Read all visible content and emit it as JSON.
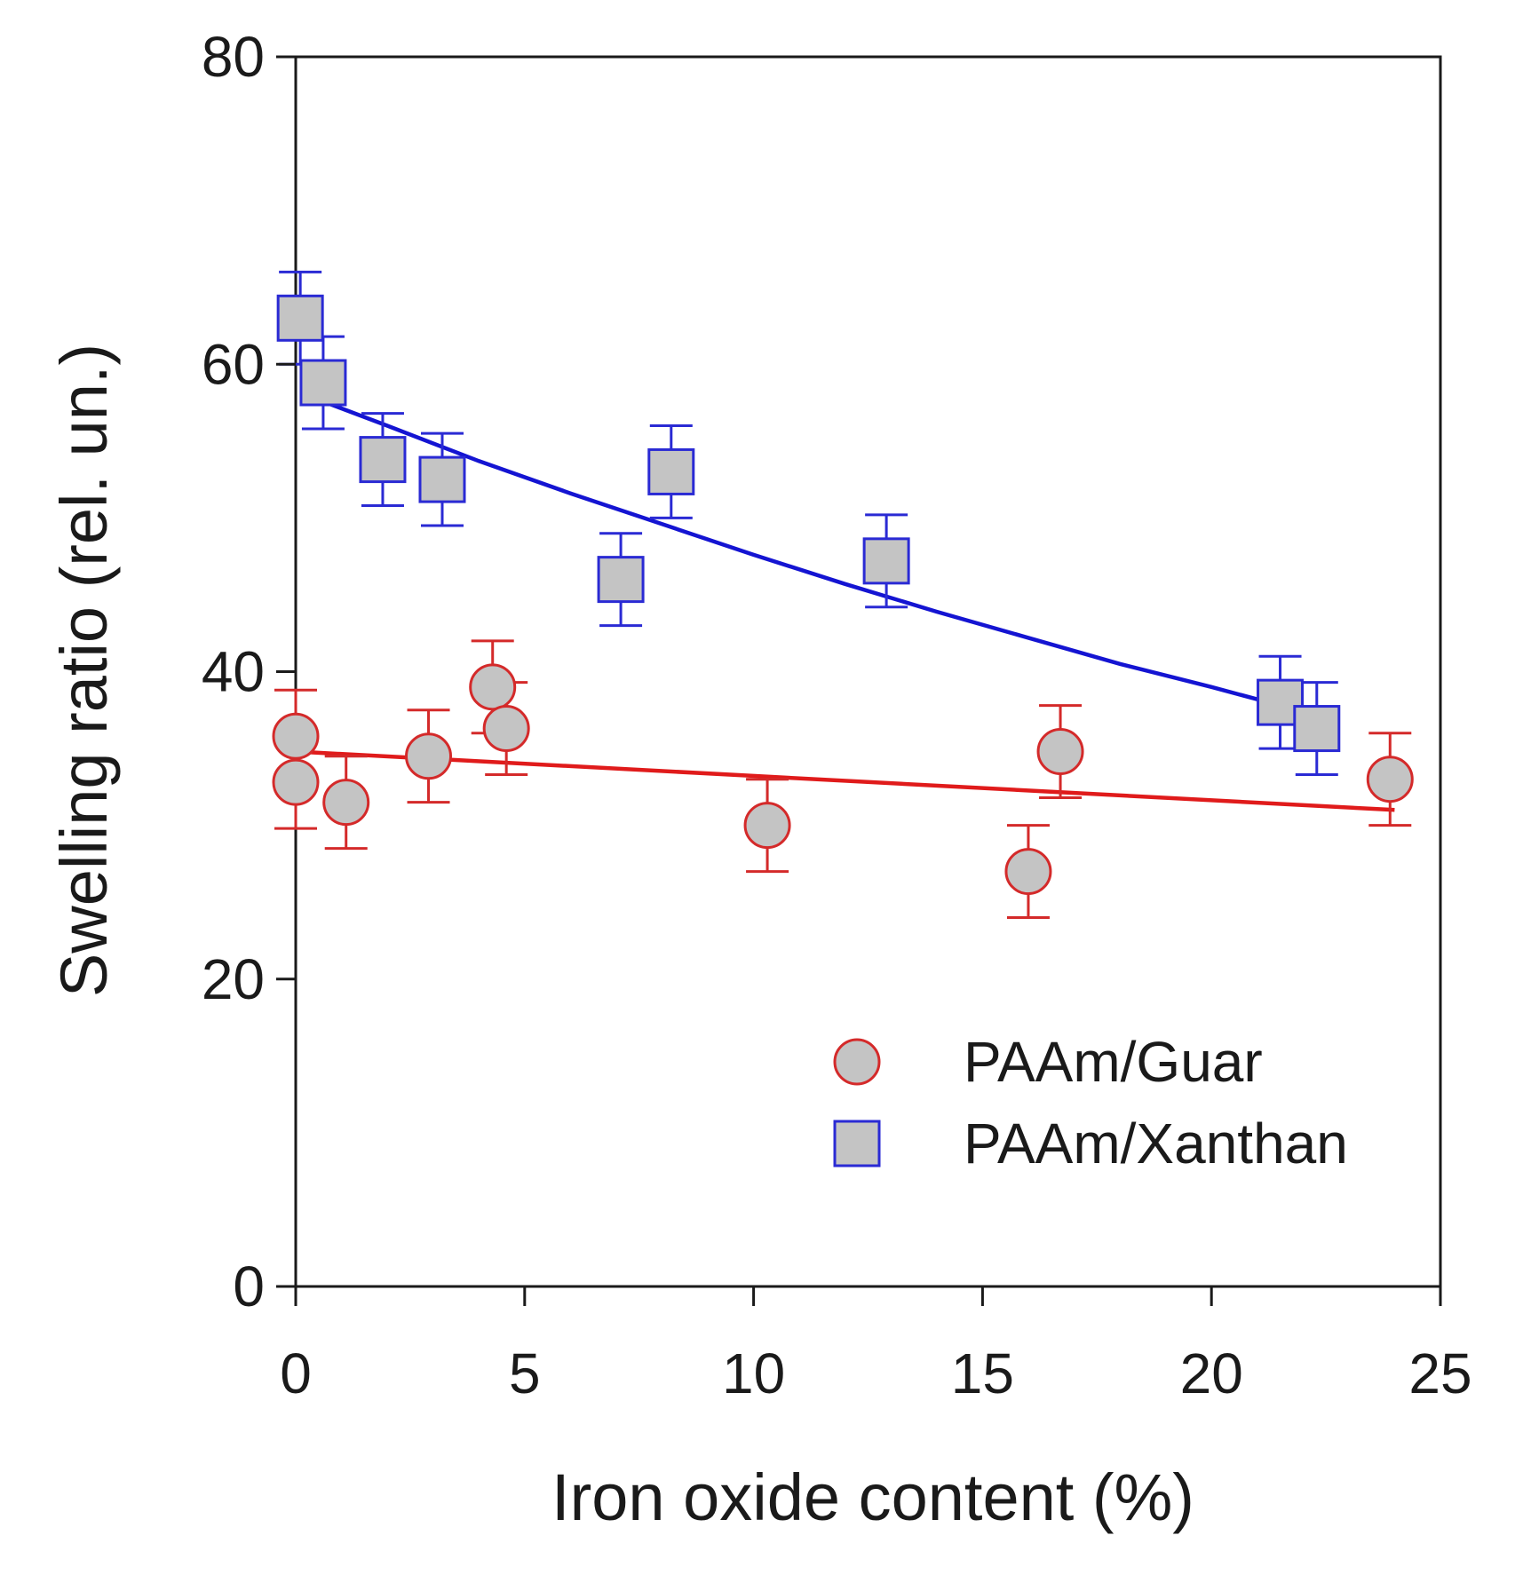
{
  "chart_data": {
    "type": "scatter",
    "title": "",
    "xlabel": "Iron oxide content (%)",
    "ylabel": "Swelling ratio (rel. un.)",
    "xlim": [
      0,
      25
    ],
    "ylim": [
      0,
      80
    ],
    "x_ticks": [
      "0",
      "5",
      "10",
      "15",
      "20",
      "25"
    ],
    "y_ticks": [
      "0",
      "20",
      "40",
      "60",
      "80"
    ],
    "grid": false,
    "legend_position": "bottom-right",
    "series": [
      {
        "name": "PAAm/Guar",
        "marker": "circle",
        "stroke_color": "#d42a2a",
        "fill_color": "#c4c4c4",
        "line_color": "#e01b1b",
        "points": [
          {
            "x": 0.0,
            "y": 35.8,
            "err": 3.0
          },
          {
            "x": 0.0,
            "y": 32.8,
            "err": 3.0
          },
          {
            "x": 1.1,
            "y": 31.5,
            "err": 3.0
          },
          {
            "x": 2.9,
            "y": 34.5,
            "err": 3.0
          },
          {
            "x": 4.3,
            "y": 39.0,
            "err": 3.0
          },
          {
            "x": 4.6,
            "y": 36.3,
            "err": 3.0
          },
          {
            "x": 10.3,
            "y": 30.0,
            "err": 3.0
          },
          {
            "x": 16.0,
            "y": 27.0,
            "err": 3.0
          },
          {
            "x": 16.7,
            "y": 34.8,
            "err": 3.0
          },
          {
            "x": 23.9,
            "y": 33.0,
            "err": 3.0
          }
        ],
        "fit": {
          "x": [
            0.0,
            24.0
          ],
          "y": [
            34.8,
            31.0
          ]
        }
      },
      {
        "name": "PAAm/Xanthan",
        "marker": "square",
        "stroke_color": "#2a2ad4",
        "fill_color": "#c4c4c4",
        "line_color": "#1414d2",
        "points": [
          {
            "x": 0.1,
            "y": 63.0,
            "err": 3.0
          },
          {
            "x": 0.6,
            "y": 58.8,
            "err": 3.0
          },
          {
            "x": 1.9,
            "y": 53.8,
            "err": 3.0
          },
          {
            "x": 3.2,
            "y": 52.5,
            "err": 3.0
          },
          {
            "x": 7.1,
            "y": 46.0,
            "err": 3.0
          },
          {
            "x": 8.2,
            "y": 53.0,
            "err": 3.0
          },
          {
            "x": 12.9,
            "y": 47.2,
            "err": 3.0
          },
          {
            "x": 21.5,
            "y": 38.0,
            "err": 3.0
          },
          {
            "x": 22.3,
            "y": 36.3,
            "err": 3.0
          }
        ],
        "fit": {
          "x": [
            0.4,
            2.0,
            4.0,
            6.0,
            8.0,
            10.0,
            12.0,
            14.0,
            16.0,
            18.0,
            20.0,
            21.5
          ],
          "y": [
            57.8,
            56.0,
            53.7,
            51.6,
            49.6,
            47.6,
            45.7,
            43.9,
            42.2,
            40.5,
            39.0,
            37.8
          ]
        }
      }
    ]
  }
}
